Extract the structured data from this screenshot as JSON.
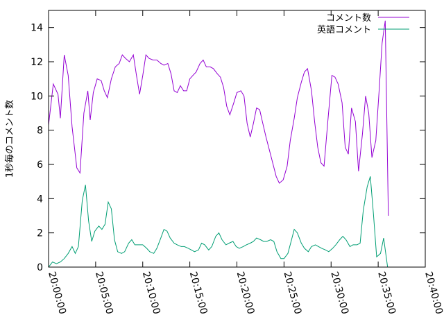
{
  "chart_data": {
    "type": "line",
    "title": "",
    "xlabel": "",
    "ylabel": "1秒毎のコメント数",
    "xlim": [
      "20:00:00",
      "20:40:00"
    ],
    "ylim": [
      0,
      15
    ],
    "x_ticks": [
      "20:00:00",
      "20:05:00",
      "20:10:00",
      "20:15:00",
      "20:20:00",
      "20:25:00",
      "20:30:00",
      "20:35:00",
      "20:40:00"
    ],
    "y_ticks": [
      0,
      2,
      4,
      6,
      8,
      10,
      12,
      14
    ],
    "legend_position": "top-right",
    "grid": false,
    "series": [
      {
        "name": "コメント数",
        "color": "#9400d3",
        "points": [
          [
            "20:00:00",
            8.3
          ],
          [
            "20:00:30",
            10.7
          ],
          [
            "20:01:00",
            10.1
          ],
          [
            "20:01:15",
            8.7
          ],
          [
            "20:01:40",
            12.4
          ],
          [
            "20:02:05",
            11.2
          ],
          [
            "20:02:30",
            8.2
          ],
          [
            "20:03:00",
            5.8
          ],
          [
            "20:03:20",
            5.5
          ],
          [
            "20:03:45",
            9.0
          ],
          [
            "20:04:10",
            10.3
          ],
          [
            "20:04:25",
            8.6
          ],
          [
            "20:04:45",
            10.2
          ],
          [
            "20:05:10",
            11.0
          ],
          [
            "20:05:35",
            10.9
          ],
          [
            "20:05:55",
            10.3
          ],
          [
            "20:06:15",
            9.9
          ],
          [
            "20:06:40",
            11.0
          ],
          [
            "20:07:05",
            11.7
          ],
          [
            "20:07:30",
            11.9
          ],
          [
            "20:07:50",
            12.4
          ],
          [
            "20:08:10",
            12.2
          ],
          [
            "20:08:35",
            12.0
          ],
          [
            "20:09:00",
            12.4
          ],
          [
            "20:09:20",
            11.2
          ],
          [
            "20:09:40",
            10.1
          ],
          [
            "20:10:00",
            11.2
          ],
          [
            "20:10:20",
            12.4
          ],
          [
            "20:10:40",
            12.2
          ],
          [
            "20:11:05",
            12.1
          ],
          [
            "20:11:30",
            12.1
          ],
          [
            "20:11:55",
            11.9
          ],
          [
            "20:12:15",
            11.8
          ],
          [
            "20:12:40",
            11.9
          ],
          [
            "20:13:00",
            11.3
          ],
          [
            "20:13:20",
            10.3
          ],
          [
            "20:13:40",
            10.2
          ],
          [
            "20:14:00",
            10.6
          ],
          [
            "20:14:20",
            10.3
          ],
          [
            "20:14:40",
            10.3
          ],
          [
            "20:15:00",
            11.0
          ],
          [
            "20:15:20",
            11.2
          ],
          [
            "20:15:40",
            11.4
          ],
          [
            "20:16:05",
            11.9
          ],
          [
            "20:16:25",
            12.1
          ],
          [
            "20:16:45",
            11.7
          ],
          [
            "20:17:10",
            11.7
          ],
          [
            "20:17:30",
            11.6
          ],
          [
            "20:17:55",
            11.3
          ],
          [
            "20:18:15",
            11.1
          ],
          [
            "20:18:35",
            10.5
          ],
          [
            "20:18:55",
            9.4
          ],
          [
            "20:19:15",
            8.9
          ],
          [
            "20:19:40",
            9.6
          ],
          [
            "20:20:00",
            10.2
          ],
          [
            "20:20:25",
            10.3
          ],
          [
            "20:20:45",
            10.0
          ],
          [
            "20:21:05",
            8.4
          ],
          [
            "20:21:25",
            7.6
          ],
          [
            "20:21:45",
            8.4
          ],
          [
            "20:22:05",
            9.3
          ],
          [
            "20:22:25",
            9.2
          ],
          [
            "20:22:45",
            8.4
          ],
          [
            "20:23:05",
            7.6
          ],
          [
            "20:23:25",
            6.9
          ],
          [
            "20:23:45",
            6.2
          ],
          [
            "20:24:10",
            5.3
          ],
          [
            "20:24:30",
            4.9
          ],
          [
            "20:24:55",
            5.1
          ],
          [
            "20:25:20",
            5.9
          ],
          [
            "20:25:40",
            7.4
          ],
          [
            "20:26:05",
            8.7
          ],
          [
            "20:26:25",
            9.9
          ],
          [
            "20:26:50",
            10.8
          ],
          [
            "20:27:10",
            11.4
          ],
          [
            "20:27:30",
            11.6
          ],
          [
            "20:27:55",
            10.3
          ],
          [
            "20:28:15",
            8.5
          ],
          [
            "20:28:35",
            7.0
          ],
          [
            "20:28:55",
            6.1
          ],
          [
            "20:29:15",
            5.9
          ],
          [
            "20:29:40",
            8.6
          ],
          [
            "20:30:05",
            11.2
          ],
          [
            "20:30:25",
            11.1
          ],
          [
            "20:30:45",
            10.7
          ],
          [
            "20:31:10",
            9.6
          ],
          [
            "20:31:30",
            7.0
          ],
          [
            "20:31:50",
            6.6
          ],
          [
            "20:32:10",
            9.3
          ],
          [
            "20:32:35",
            8.5
          ],
          [
            "20:32:55",
            5.6
          ],
          [
            "20:33:20",
            7.8
          ],
          [
            "20:33:40",
            10.0
          ],
          [
            "20:34:00",
            9.0
          ],
          [
            "20:34:20",
            6.4
          ],
          [
            "20:34:45",
            7.4
          ],
          [
            "20:35:05",
            10.2
          ],
          [
            "20:35:25",
            13.1
          ],
          [
            "20:35:45",
            14.4
          ],
          [
            "20:36:05",
            3.0
          ]
        ]
      },
      {
        "name": "英語コメント",
        "color": "#009e73",
        "points": [
          [
            "20:00:00",
            0.0
          ],
          [
            "20:00:25",
            0.3
          ],
          [
            "20:00:50",
            0.2
          ],
          [
            "20:01:15",
            0.3
          ],
          [
            "20:01:40",
            0.5
          ],
          [
            "20:02:05",
            0.8
          ],
          [
            "20:02:30",
            1.2
          ],
          [
            "20:02:50",
            0.8
          ],
          [
            "20:03:10",
            1.2
          ],
          [
            "20:03:35",
            3.9
          ],
          [
            "20:03:55",
            4.8
          ],
          [
            "20:04:15",
            2.7
          ],
          [
            "20:04:35",
            1.5
          ],
          [
            "20:04:55",
            2.1
          ],
          [
            "20:05:20",
            2.4
          ],
          [
            "20:05:40",
            2.2
          ],
          [
            "20:06:00",
            2.5
          ],
          [
            "20:06:20",
            3.8
          ],
          [
            "20:06:40",
            3.4
          ],
          [
            "20:07:00",
            1.6
          ],
          [
            "20:07:20",
            0.9
          ],
          [
            "20:07:45",
            0.8
          ],
          [
            "20:08:05",
            0.9
          ],
          [
            "20:08:30",
            1.4
          ],
          [
            "20:08:50",
            1.6
          ],
          [
            "20:09:10",
            1.3
          ],
          [
            "20:09:35",
            1.3
          ],
          [
            "20:10:00",
            1.3
          ],
          [
            "20:10:25",
            1.1
          ],
          [
            "20:10:45",
            0.9
          ],
          [
            "20:11:10",
            0.8
          ],
          [
            "20:11:30",
            1.1
          ],
          [
            "20:11:55",
            1.7
          ],
          [
            "20:12:15",
            2.2
          ],
          [
            "20:12:35",
            2.1
          ],
          [
            "20:12:55",
            1.7
          ],
          [
            "20:13:20",
            1.4
          ],
          [
            "20:13:40",
            1.3
          ],
          [
            "20:14:05",
            1.2
          ],
          [
            "20:14:25",
            1.2
          ],
          [
            "20:14:50",
            1.1
          ],
          [
            "20:15:10",
            1.0
          ],
          [
            "20:15:30",
            0.9
          ],
          [
            "20:15:55",
            1.0
          ],
          [
            "20:16:15",
            1.4
          ],
          [
            "20:16:35",
            1.3
          ],
          [
            "20:17:00",
            1.0
          ],
          [
            "20:17:20",
            1.2
          ],
          [
            "20:17:45",
            1.8
          ],
          [
            "20:18:05",
            2.0
          ],
          [
            "20:18:25",
            1.6
          ],
          [
            "20:18:50",
            1.3
          ],
          [
            "20:19:10",
            1.4
          ],
          [
            "20:19:35",
            1.5
          ],
          [
            "20:19:55",
            1.2
          ],
          [
            "20:20:15",
            1.1
          ],
          [
            "20:20:40",
            1.2
          ],
          [
            "20:21:00",
            1.3
          ],
          [
            "20:21:25",
            1.4
          ],
          [
            "20:21:45",
            1.5
          ],
          [
            "20:22:05",
            1.7
          ],
          [
            "20:22:30",
            1.6
          ],
          [
            "20:22:50",
            1.5
          ],
          [
            "20:23:10",
            1.5
          ],
          [
            "20:23:35",
            1.6
          ],
          [
            "20:23:55",
            1.5
          ],
          [
            "20:24:15",
            0.9
          ],
          [
            "20:24:40",
            0.5
          ],
          [
            "20:25:00",
            0.5
          ],
          [
            "20:25:25",
            0.8
          ],
          [
            "20:25:45",
            1.5
          ],
          [
            "20:26:05",
            2.2
          ],
          [
            "20:26:25",
            2.0
          ],
          [
            "20:26:50",
            1.4
          ],
          [
            "20:27:10",
            1.1
          ],
          [
            "20:27:35",
            0.9
          ],
          [
            "20:27:55",
            1.2
          ],
          [
            "20:28:20",
            1.3
          ],
          [
            "20:28:40",
            1.2
          ],
          [
            "20:29:00",
            1.1
          ],
          [
            "20:29:25",
            1.0
          ],
          [
            "20:29:45",
            0.9
          ],
          [
            "20:30:10",
            1.1
          ],
          [
            "20:30:30",
            1.3
          ],
          [
            "20:30:55",
            1.6
          ],
          [
            "20:31:15",
            1.8
          ],
          [
            "20:31:35",
            1.6
          ],
          [
            "20:32:00",
            1.2
          ],
          [
            "20:32:20",
            1.3
          ],
          [
            "20:32:45",
            1.3
          ],
          [
            "20:33:05",
            1.4
          ],
          [
            "20:33:25",
            3.3
          ],
          [
            "20:33:50",
            4.7
          ],
          [
            "20:34:10",
            5.3
          ],
          [
            "20:34:30",
            3.1
          ],
          [
            "20:34:50",
            0.6
          ],
          [
            "20:35:15",
            0.8
          ],
          [
            "20:35:35",
            1.7
          ],
          [
            "20:36:00",
            0.0
          ]
        ]
      }
    ]
  }
}
